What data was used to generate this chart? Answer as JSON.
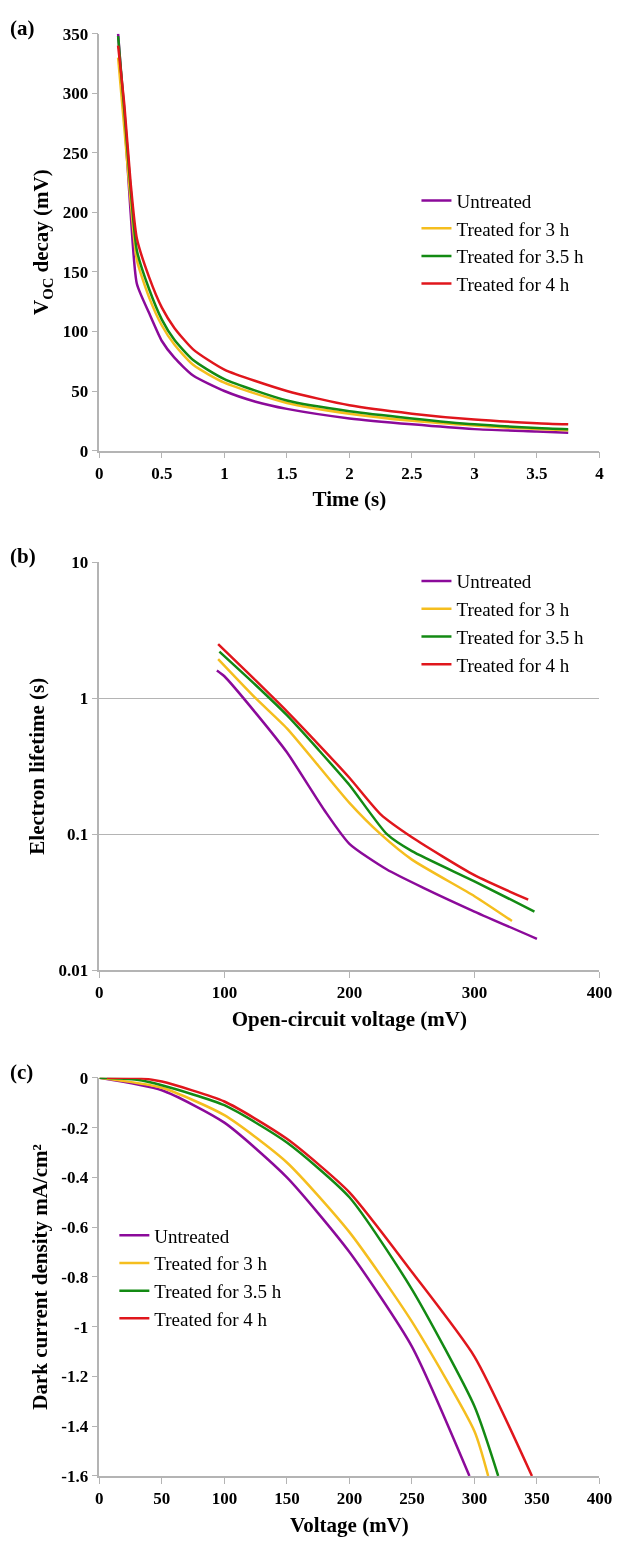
{
  "chart_data": [
    {
      "type": "line",
      "title": "(a)",
      "xlabel": "Time (s)",
      "ylabel": "V$_{OC}$ decay (mV)",
      "xlim": [
        0,
        4
      ],
      "xticks": [
        0,
        0.5,
        1,
        1.5,
        2,
        2.5,
        3,
        3.5,
        4
      ],
      "ylim": [
        0,
        350
      ],
      "yticks": [
        0,
        50,
        100,
        150,
        200,
        250,
        300,
        350
      ],
      "grid": false,
      "legend": "right",
      "marker": "none",
      "line_style": "solid",
      "series": [
        {
          "name": "Untreated",
          "color": "#8b0a9a",
          "x": [
            0.15,
            0.2,
            0.25,
            0.3,
            0.4,
            0.5,
            0.6,
            0.75,
            1,
            1.25,
            1.5,
            2,
            2.5,
            3,
            3.5,
            3.75
          ],
          "values": [
            350,
            280,
            200,
            140,
            115,
            92,
            78,
            63,
            50,
            41,
            35,
            27,
            22,
            18,
            16,
            15
          ]
        },
        {
          "name": "Treated for 3 h",
          "color": "#f5be1e",
          "x": [
            0.15,
            0.2,
            0.25,
            0.3,
            0.4,
            0.5,
            0.6,
            0.75,
            1,
            1.5,
            2,
            2.5,
            3,
            3.5,
            3.75
          ],
          "values": [
            330,
            270,
            210,
            160,
            128,
            105,
            89,
            72,
            57,
            40,
            31,
            25,
            21,
            18,
            17
          ]
        },
        {
          "name": "Treated for 3.5 h",
          "color": "#138a13",
          "x": [
            0.15,
            0.2,
            0.25,
            0.3,
            0.4,
            0.5,
            0.6,
            0.75,
            1,
            1.5,
            2,
            2.5,
            3,
            3.5,
            3.75
          ],
          "values": [
            348,
            285,
            220,
            168,
            135,
            110,
            93,
            76,
            60,
            42,
            33,
            27,
            22,
            19,
            18
          ]
        },
        {
          "name": "Treated for 4 h",
          "color": "#e0161c",
          "x": [
            0.15,
            0.2,
            0.25,
            0.3,
            0.4,
            0.5,
            0.6,
            0.75,
            1,
            1.5,
            2,
            2.5,
            3,
            3.5,
            3.75
          ],
          "values": [
            340,
            290,
            225,
            178,
            145,
            120,
            103,
            85,
            68,
            50,
            38,
            31,
            26,
            23,
            22
          ]
        }
      ]
    },
    {
      "type": "line",
      "title": "(b)",
      "xlabel": "Open-circuit voltage (mV)",
      "ylabel": "Electron lifetime (s)",
      "xlim": [
        0,
        400
      ],
      "xticks": [
        0,
        100,
        200,
        300,
        400
      ],
      "ylim": [
        0.01,
        10
      ],
      "yticks": [
        0.01,
        0.1,
        1,
        10
      ],
      "log": "y",
      "grid": "y",
      "legend": "top right",
      "marker": "none",
      "line_style": "solid",
      "series": [
        {
          "name": "Untreated",
          "color": "#8b0a9a",
          "x": [
            94,
            100,
            125,
            150,
            180,
            200,
            230,
            260,
            300,
            350
          ],
          "values": [
            1.6,
            1.45,
            0.78,
            0.4,
            0.15,
            0.085,
            0.055,
            0.04,
            0.027,
            0.017
          ]
        },
        {
          "name": "Treated for 3 h",
          "color": "#f5be1e",
          "x": [
            95,
            125,
            150,
            175,
            200,
            225,
            250,
            300,
            330
          ],
          "values": [
            1.94,
            1.0,
            0.6,
            0.32,
            0.17,
            0.1,
            0.065,
            0.035,
            0.023
          ]
        },
        {
          "name": "Treated for 3.5 h",
          "color": "#138a13",
          "x": [
            96,
            125,
            150,
            175,
            200,
            230,
            250,
            300,
            348
          ],
          "values": [
            2.2,
            1.25,
            0.75,
            0.42,
            0.23,
            0.1,
            0.075,
            0.045,
            0.027
          ]
        },
        {
          "name": "Treated for 4 h",
          "color": "#e0161c",
          "x": [
            95,
            125,
            150,
            175,
            200,
            225,
            250,
            300,
            343
          ],
          "values": [
            2.5,
            1.35,
            0.8,
            0.46,
            0.26,
            0.14,
            0.095,
            0.05,
            0.033
          ]
        }
      ]
    },
    {
      "type": "line",
      "title": "(c)",
      "xlabel": "Voltage (mV)",
      "ylabel": "Dark current density mA/cm²",
      "xlim": [
        0,
        400
      ],
      "xticks": [
        0,
        50,
        100,
        150,
        200,
        250,
        300,
        350,
        400
      ],
      "ylim": [
        -1.6,
        0
      ],
      "yticks": [
        -1.6,
        -1.4,
        -1.2,
        -1,
        -0.8,
        -0.6,
        -0.4,
        -0.2,
        0
      ],
      "grid": false,
      "legend": "left",
      "marker": "none",
      "line_style": "solid",
      "series": [
        {
          "name": "Untreated",
          "color": "#8b0a9a",
          "x": [
            0,
            50,
            100,
            150,
            200,
            250,
            296
          ],
          "values": [
            0,
            -0.05,
            -0.18,
            -0.4,
            -0.7,
            -1.08,
            -1.6
          ]
        },
        {
          "name": "Treated for 3 h",
          "color": "#f5be1e",
          "x": [
            0,
            50,
            100,
            150,
            200,
            250,
            300,
            311
          ],
          "values": [
            0,
            -0.04,
            -0.15,
            -0.34,
            -0.62,
            -0.98,
            -1.42,
            -1.6
          ]
        },
        {
          "name": "Treated for 3.5 h",
          "color": "#138a13",
          "x": [
            0,
            30,
            50,
            100,
            150,
            200,
            250,
            300,
            319
          ],
          "values": [
            0,
            -0.008,
            -0.03,
            -0.11,
            -0.26,
            -0.48,
            -0.85,
            -1.32,
            -1.6
          ]
        },
        {
          "name": "Treated for 4 h",
          "color": "#e0161c",
          "x": [
            6,
            30,
            50,
            100,
            150,
            200,
            250,
            300,
            346
          ],
          "values": [
            0,
            0,
            -0.015,
            -0.095,
            -0.245,
            -0.46,
            -0.78,
            -1.12,
            -1.6
          ]
        }
      ]
    }
  ]
}
